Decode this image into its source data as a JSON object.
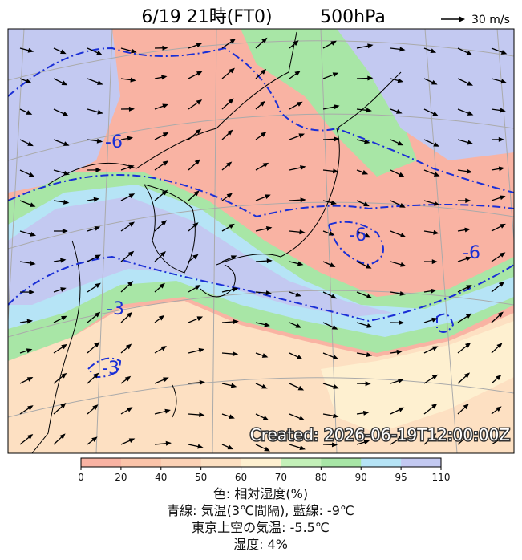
{
  "header": {
    "title": "6/19 21時(FT0)",
    "level": "500hPa",
    "wind_scale": "30 m/s"
  },
  "map": {
    "created": "Created: 2026-06-19T12:00:00Z",
    "contour_labels": [
      "-6",
      "-6",
      "-6",
      "-3",
      "-3"
    ]
  },
  "colorbar": {
    "ticks": [
      0,
      20,
      40,
      50,
      60,
      70,
      80,
      90,
      95,
      110
    ],
    "colors": [
      "#f9b3a3",
      "#fbc4aa",
      "#fcd2b6",
      "#fde0c2",
      "#fef0d0",
      "#c3f0b8",
      "#a8e6a6",
      "#b6e4f6",
      "#c3c9f1"
    ]
  },
  "caption": [
    "色: 相対湿度(%)",
    "青線: 気温(3℃間隔), 藍線: -9℃",
    "東京上空の気温: -5.5℃",
    "湿度: 4%"
  ]
}
